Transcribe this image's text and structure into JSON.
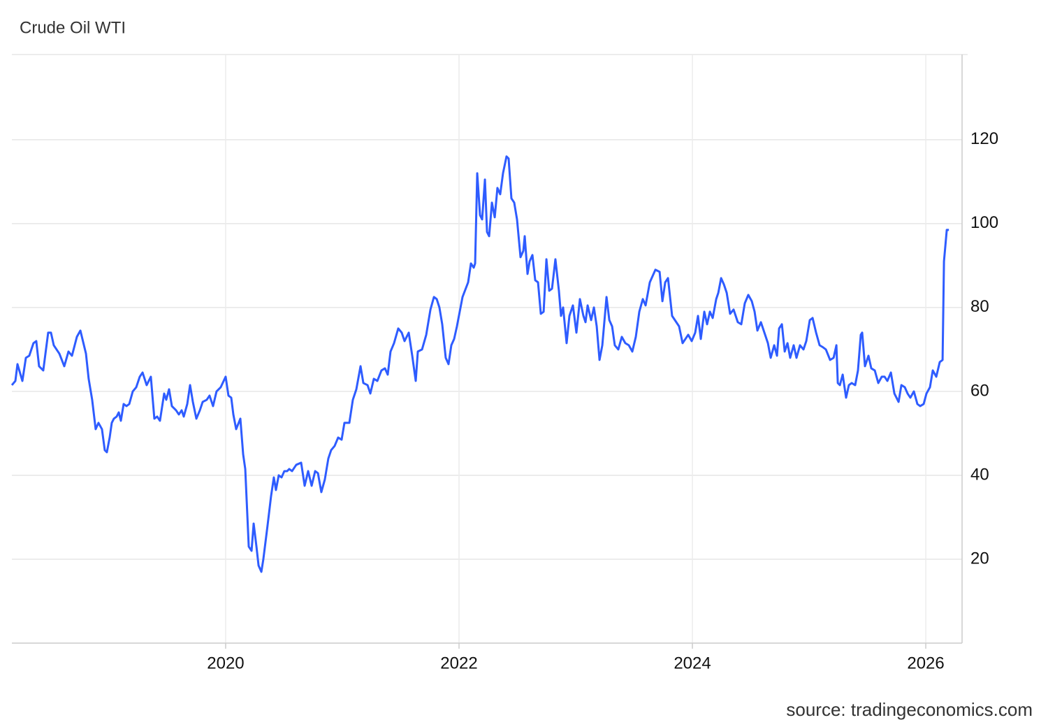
{
  "chart_data": {
    "type": "line",
    "title": "Crude Oil WTI",
    "source": "source: tradingeconomics.com",
    "xlim": [
      2018.168,
      2026.311
    ],
    "ylim": [
      0,
      140.3
    ],
    "xticks": [
      2020,
      2022,
      2024,
      2026
    ],
    "yticks": [
      20,
      40,
      60,
      80,
      100,
      120
    ],
    "grid": true,
    "series": [
      {
        "color": "#2e5cff",
        "x": [
          2018.168,
          2018.198,
          2018.216,
          2018.258,
          2018.288,
          2018.317,
          2018.353,
          2018.377,
          2018.401,
          2018.437,
          2018.479,
          2018.503,
          2018.527,
          2018.575,
          2018.617,
          2018.653,
          2018.683,
          2018.725,
          2018.755,
          2018.803,
          2018.826,
          2018.856,
          2018.886,
          2018.91,
          2018.94,
          2018.964,
          2018.982,
          2019.006,
          2019.024,
          2019.042,
          2019.066,
          2019.084,
          2019.102,
          2019.126,
          2019.15,
          2019.174,
          2019.204,
          2019.234,
          2019.264,
          2019.288,
          2019.323,
          2019.359,
          2019.389,
          2019.413,
          2019.437,
          2019.473,
          2019.491,
          2019.515,
          2019.539,
          2019.575,
          2019.599,
          2019.623,
          2019.641,
          2019.671,
          2019.695,
          2019.719,
          2019.749,
          2019.779,
          2019.803,
          2019.838,
          2019.862,
          2019.892,
          2019.922,
          2019.958,
          2020.0,
          2020.024,
          2020.048,
          2020.066,
          2020.09,
          2020.126,
          2020.15,
          2020.168,
          2020.198,
          2020.222,
          2020.24,
          2020.264,
          2020.282,
          2020.306,
          2020.323,
          2020.359,
          2020.389,
          2020.413,
          2020.431,
          2020.455,
          2020.479,
          2020.503,
          2020.527,
          2020.545,
          2020.569,
          2020.605,
          2020.647,
          2020.677,
          2020.707,
          2020.737,
          2020.767,
          2020.791,
          2020.82,
          2020.85,
          2020.88,
          2020.904,
          2020.934,
          2020.964,
          2020.994,
          2021.018,
          2021.06,
          2021.09,
          2021.12,
          2021.156,
          2021.18,
          2021.216,
          2021.24,
          2021.27,
          2021.3,
          2021.335,
          2021.365,
          2021.389,
          2021.413,
          2021.443,
          2021.479,
          2021.509,
          2021.533,
          2021.569,
          2021.599,
          2021.629,
          2021.647,
          2021.683,
          2021.719,
          2021.755,
          2021.785,
          2021.809,
          2021.832,
          2021.856,
          2021.886,
          2021.91,
          2021.934,
          2021.958,
          2021.982,
          2022.03,
          2022.078,
          2022.102,
          2022.126,
          2022.138,
          2022.156,
          2022.18,
          2022.198,
          2022.222,
          2022.24,
          2022.258,
          2022.282,
          2022.306,
          2022.329,
          2022.353,
          2022.377,
          2022.407,
          2022.425,
          2022.449,
          2022.473,
          2022.497,
          2022.527,
          2022.551,
          2022.563,
          2022.587,
          2022.605,
          2022.629,
          2022.653,
          2022.677,
          2022.701,
          2022.725,
          2022.749,
          2022.773,
          2022.797,
          2022.826,
          2022.856,
          2022.874,
          2022.892,
          2022.922,
          2022.946,
          2022.976,
          2023.006,
          2023.036,
          2023.066,
          2023.084,
          2023.102,
          2023.132,
          2023.156,
          2023.18,
          2023.204,
          2023.228,
          2023.264,
          2023.288,
          2023.312,
          2023.335,
          2023.365,
          2023.395,
          2023.425,
          2023.455,
          2023.485,
          2023.515,
          2023.545,
          2023.575,
          2023.599,
          2023.635,
          2023.683,
          2023.719,
          2023.743,
          2023.767,
          2023.791,
          2023.826,
          2023.862,
          2023.886,
          2023.916,
          2023.94,
          2023.964,
          2023.994,
          2024.024,
          2024.048,
          2024.072,
          2024.102,
          2024.126,
          2024.15,
          2024.174,
          2024.204,
          2024.222,
          2024.246,
          2024.27,
          2024.294,
          2024.323,
          2024.353,
          2024.389,
          2024.419,
          2024.449,
          2024.479,
          2024.509,
          2024.533,
          2024.557,
          2024.587,
          2024.617,
          2024.647,
          2024.671,
          2024.701,
          2024.725,
          2024.743,
          2024.767,
          2024.791,
          2024.815,
          2024.838,
          2024.868,
          2024.892,
          2024.922,
          2024.952,
          2024.976,
          2025.006,
          2025.03,
          2025.06,
          2025.09,
          2025.12,
          2025.144,
          2025.18,
          2025.21,
          2025.234,
          2025.246,
          2025.264,
          2025.288,
          2025.317,
          2025.341,
          2025.365,
          2025.395,
          2025.419,
          2025.443,
          2025.455,
          2025.479,
          2025.509,
          2025.533,
          2025.563,
          2025.593,
          2025.623,
          2025.647,
          2025.671,
          2025.701,
          2025.731,
          2025.767,
          2025.791,
          2025.82,
          2025.844,
          2025.868,
          2025.898,
          2025.928,
          2025.952,
          2025.982,
          2026.006,
          2026.036,
          2026.06,
          2026.09,
          2026.12,
          2026.144,
          2026.156,
          2026.18,
          2026.198
        ],
        "values": [
          61.5,
          62.5,
          66.5,
          62.5,
          68,
          68.5,
          71.5,
          72,
          66,
          65,
          74,
          74,
          71,
          69,
          66,
          69.5,
          68.5,
          73,
          74.5,
          69,
          63,
          58,
          51,
          52.5,
          51,
          46,
          45.5,
          49,
          52.5,
          53.5,
          54,
          55,
          53,
          57,
          56.5,
          57,
          60,
          61,
          63.5,
          64.5,
          61.5,
          63.5,
          53.5,
          54,
          53,
          59.5,
          58,
          60.5,
          56.5,
          55.5,
          54.5,
          55.5,
          54,
          57,
          61.5,
          57.5,
          53.5,
          55.5,
          57.5,
          58,
          59,
          56.5,
          60,
          61,
          63.5,
          59,
          58.5,
          54.5,
          51,
          53.5,
          45,
          41.5,
          23,
          22,
          28.5,
          23,
          18.5,
          17,
          20,
          28,
          35,
          39.5,
          36.5,
          40,
          39.5,
          41,
          41,
          41.5,
          41,
          42.5,
          43,
          37.5,
          41,
          37.5,
          41,
          40.5,
          36,
          39,
          44,
          46,
          47,
          49,
          48.5,
          52.5,
          52.5,
          58,
          60.5,
          66,
          62,
          61.5,
          59.5,
          63,
          62.5,
          65,
          65.5,
          64,
          69.5,
          71.5,
          75,
          74,
          72,
          74,
          68.5,
          62.5,
          69.5,
          70,
          73.5,
          79.5,
          82.5,
          82,
          80,
          76,
          68,
          66.5,
          71,
          72.5,
          75.5,
          82.5,
          86,
          90.5,
          89.5,
          90.5,
          112,
          102,
          101,
          110.5,
          98,
          97,
          105,
          101.5,
          108.5,
          107,
          112,
          116,
          115.5,
          106,
          105,
          101,
          92,
          93.5,
          97,
          88,
          91,
          92.5,
          86.5,
          86,
          78.5,
          79,
          91.5,
          84,
          84.5,
          91.5,
          84,
          78,
          80,
          71.5,
          78,
          80.5,
          74,
          82,
          78,
          76.5,
          80.5,
          77,
          80,
          75.5,
          67.5,
          71,
          82.5,
          77,
          75.5,
          71,
          70,
          73,
          71.5,
          71,
          69.5,
          73,
          79,
          82,
          80.5,
          86,
          89,
          88.5,
          81.5,
          86,
          87,
          78,
          76.5,
          75.5,
          71.5,
          72.5,
          73.5,
          72,
          74,
          78,
          72.5,
          79,
          76,
          79,
          77.5,
          82,
          83.5,
          87,
          85.5,
          83.5,
          78.5,
          79.5,
          76.5,
          76,
          81,
          83,
          81.5,
          79,
          74.5,
          76.5,
          74,
          71.5,
          68,
          71,
          68.5,
          75,
          76,
          69.5,
          71.5,
          68,
          71,
          68,
          71,
          70,
          72,
          77,
          77.5,
          74,
          71,
          70.5,
          70,
          67.5,
          68,
          71,
          62,
          61.5,
          64,
          58.5,
          61.5,
          62,
          61.5,
          65,
          73.5,
          74,
          66,
          68.5,
          65.5,
          65,
          62,
          63.5,
          63.5,
          62.5,
          64.5,
          59.5,
          57.5,
          61.5,
          61,
          59.5,
          58.5,
          60,
          57,
          56.5,
          57,
          59.5,
          61,
          65,
          63.5,
          67,
          67.5,
          91,
          98.5,
          98.5
        ]
      }
    ]
  }
}
